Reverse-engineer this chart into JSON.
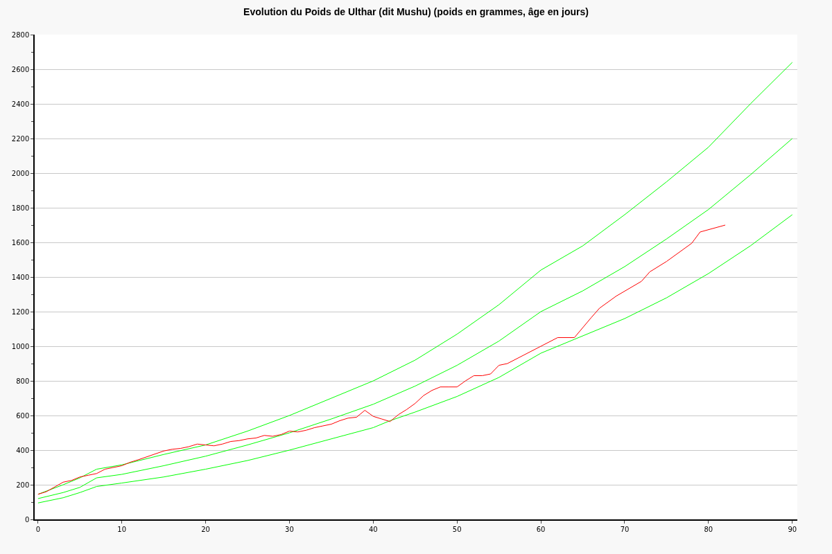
{
  "chart_data": {
    "type": "line",
    "title": "Evolution du Poids de Ulthar (dit Mushu) (poids en grammes, âge en jours)",
    "xlim": [
      -0.4,
      90.6
    ],
    "xticks": [
      0,
      10,
      20,
      30,
      40,
      50,
      60,
      70,
      80,
      90
    ],
    "ylim": [
      0,
      2800
    ],
    "yticks": [
      0,
      {
        "value": 100,
        "label": null
      },
      200,
      {
        "value": 300,
        "label": null
      },
      400,
      {
        "value": 500,
        "label": null
      },
      600,
      {
        "value": 700,
        "label": null
      },
      800,
      {
        "value": 900,
        "label": null
      },
      1000,
      {
        "value": 1100,
        "label": null
      },
      1200,
      {
        "value": 1300,
        "label": null
      },
      1400,
      {
        "value": 1500,
        "label": null
      },
      1600,
      {
        "value": 1700,
        "label": null
      },
      1800,
      {
        "value": 1900,
        "label": null
      },
      2000,
      {
        "value": 2100,
        "label": null
      },
      2200,
      {
        "value": 2300,
        "label": null
      },
      2400,
      {
        "value": 2500,
        "label": null
      },
      2600,
      {
        "value": 2700,
        "label": null
      },
      2800
    ],
    "grid": "y",
    "marker": "none",
    "line_style": "solid",
    "series": [
      {
        "color": "#00ff00",
        "x": [
          0,
          3,
          5,
          7,
          10,
          15,
          20,
          25,
          30,
          35,
          40,
          45,
          50,
          55,
          60,
          65,
          70,
          75,
          80,
          85,
          90
        ],
        "values": [
          145,
          200,
          240,
          290,
          315,
          375,
          430,
          510,
          600,
          700,
          800,
          920,
          1070,
          1240,
          1440,
          1580,
          1760,
          1950,
          2150,
          2400,
          2640
        ]
      },
      {
        "color": "#00ff00",
        "x": [
          0,
          3,
          5,
          7,
          10,
          15,
          20,
          25,
          30,
          35,
          40,
          45,
          50,
          55,
          60,
          65,
          70,
          75,
          80,
          85,
          90
        ],
        "values": [
          120,
          155,
          185,
          240,
          260,
          310,
          365,
          430,
          500,
          580,
          665,
          770,
          890,
          1030,
          1200,
          1320,
          1460,
          1620,
          1790,
          1990,
          2200
        ]
      },
      {
        "color": "#00ff00",
        "x": [
          0,
          3,
          5,
          7,
          10,
          15,
          20,
          25,
          30,
          35,
          40,
          42,
          45,
          50,
          55,
          60,
          64,
          70,
          75,
          80,
          85,
          90
        ],
        "values": [
          95,
          125,
          155,
          190,
          210,
          245,
          290,
          340,
          400,
          465,
          530,
          570,
          620,
          710,
          820,
          960,
          1040,
          1160,
          1280,
          1420,
          1580,
          1760
        ]
      },
      {
        "color": "#ff0000",
        "x": [
          0,
          1,
          3,
          4,
          5,
          6,
          7,
          8,
          10,
          11,
          12,
          15,
          16,
          17,
          18,
          19,
          20,
          21,
          22,
          23,
          24,
          25,
          26,
          27,
          28,
          29,
          30,
          31,
          32,
          33,
          34,
          35,
          36,
          37,
          38,
          39,
          40,
          41,
          42,
          43,
          44,
          45,
          46,
          47,
          48,
          49,
          50,
          51,
          52,
          53,
          54,
          55,
          56,
          58,
          60,
          62,
          64,
          66,
          67,
          69,
          72,
          73,
          75,
          78,
          79,
          82
        ],
        "values": [
          145,
          160,
          215,
          225,
          245,
          255,
          265,
          290,
          310,
          330,
          345,
          395,
          405,
          410,
          420,
          435,
          430,
          425,
          435,
          450,
          455,
          465,
          470,
          485,
          480,
          490,
          510,
          505,
          515,
          530,
          540,
          550,
          570,
          585,
          590,
          630,
          595,
          580,
          565,
          605,
          635,
          670,
          715,
          745,
          765,
          765,
          765,
          800,
          830,
          830,
          840,
          890,
          900,
          950,
          1000,
          1050,
          1050,
          1165,
          1220,
          1290,
          1375,
          1430,
          1490,
          1595,
          1660,
          1700
        ]
      }
    ]
  }
}
